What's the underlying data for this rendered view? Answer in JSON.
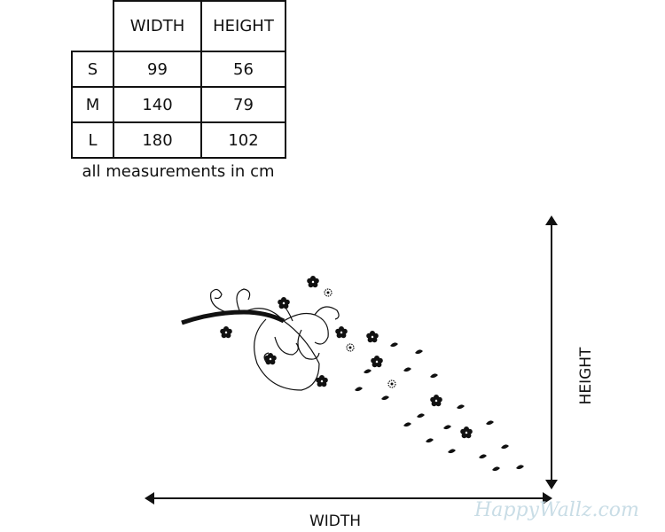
{
  "table": {
    "header": [
      "WIDTH",
      "HEIGHT"
    ],
    "rows": [
      [
        "S",
        99,
        56
      ],
      [
        "M",
        140,
        79
      ],
      [
        "L",
        180,
        102
      ]
    ],
    "note": "all measurements in cm"
  },
  "diagram": {
    "width_label": "WIDTH",
    "height_label": "HEIGHT"
  },
  "watermark": "HappyWallz.com"
}
